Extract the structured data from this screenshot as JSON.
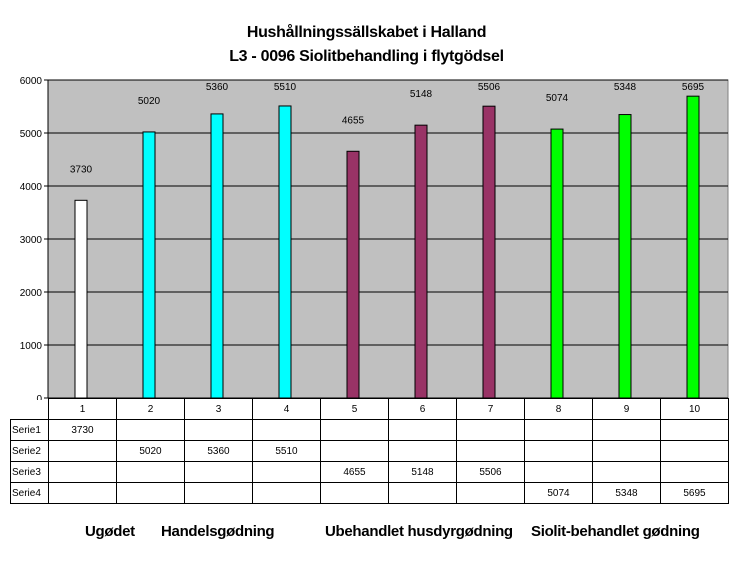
{
  "chart_data": {
    "type": "bar",
    "title": "Hushållningssällskabet i Halland",
    "subtitle": "L3 - 0096 Siolitbehandling i flytgödsel",
    "categories": [
      "1",
      "2",
      "3",
      "4",
      "5",
      "6",
      "7",
      "8",
      "9",
      "10"
    ],
    "ylim": [
      0,
      6000
    ],
    "yticks": [
      0,
      1000,
      2000,
      3000,
      4000,
      5000,
      6000
    ],
    "grid": true,
    "legend": "data-table",
    "series": [
      {
        "name": "Serie1",
        "color": "#ffffff",
        "values": [
          3730,
          null,
          null,
          null,
          null,
          null,
          null,
          null,
          null,
          null
        ]
      },
      {
        "name": "Serie2",
        "color": "#00ffff",
        "values": [
          null,
          5020,
          5360,
          5510,
          null,
          null,
          null,
          null,
          null,
          null
        ]
      },
      {
        "name": "Serie3",
        "color": "#993366",
        "values": [
          null,
          null,
          null,
          null,
          4655,
          5148,
          5506,
          null,
          null,
          null
        ]
      },
      {
        "name": "Serie4",
        "color": "#00ff00",
        "values": [
          null,
          null,
          null,
          null,
          null,
          null,
          null,
          5074,
          5348,
          5695
        ]
      }
    ],
    "plot_background": "#c0c0c0"
  },
  "group_labels": [
    "Ugødet",
    "Handelsgødning",
    "Ubehandlet husdyrgødning",
    "Siolit-behandlet gødning"
  ]
}
